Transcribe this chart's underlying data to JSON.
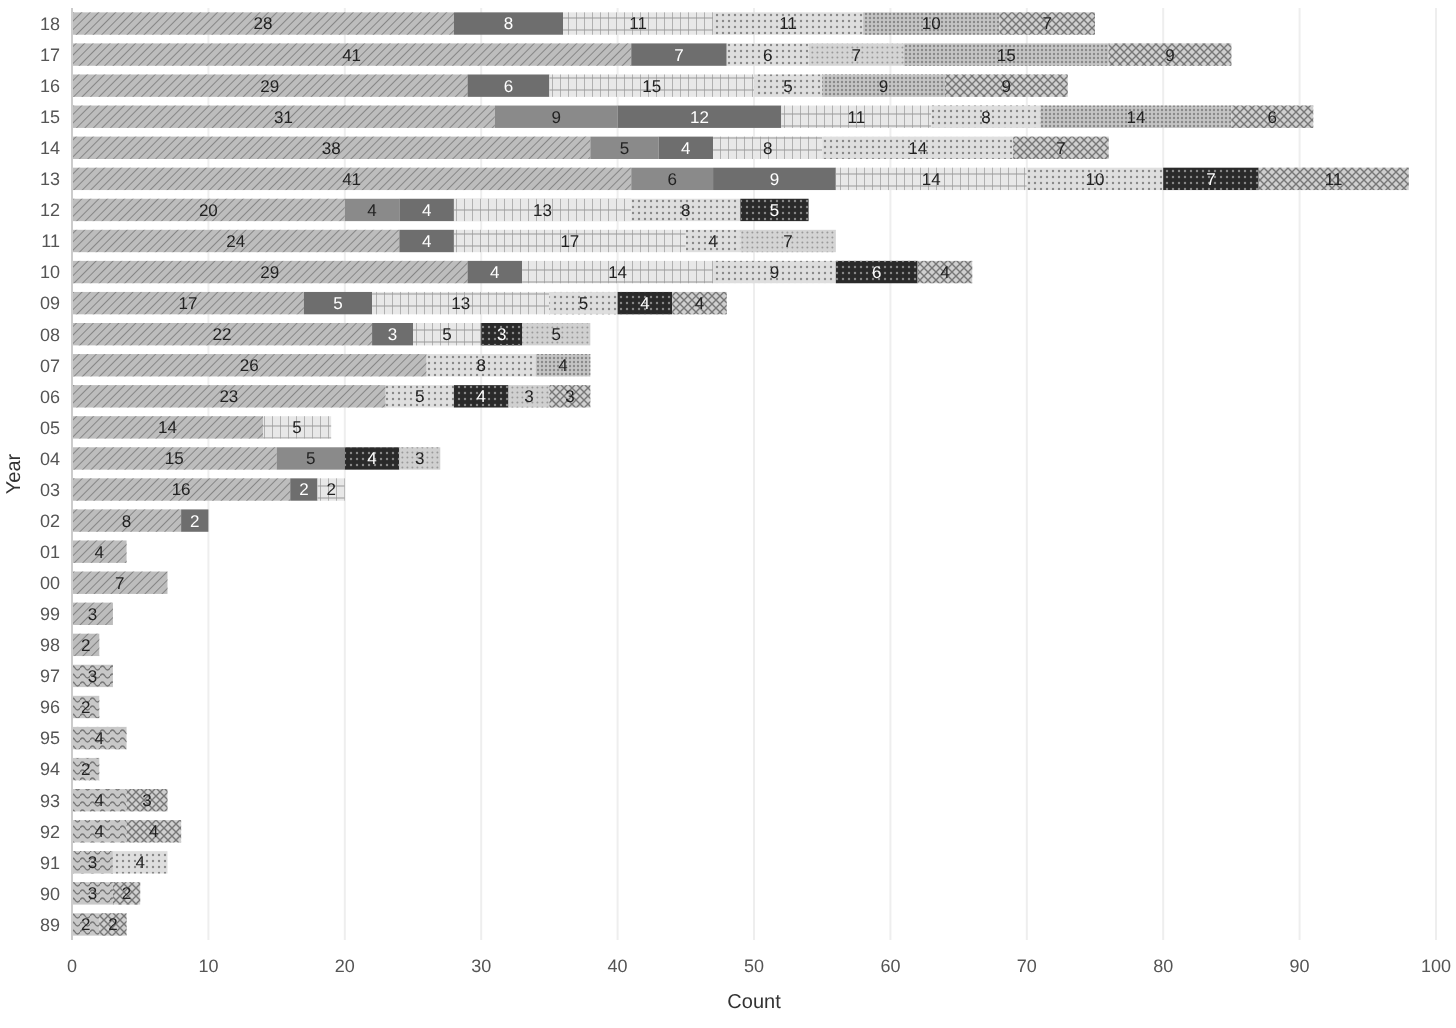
{
  "chart_data": {
    "type": "bar",
    "orientation": "horizontal",
    "stacked": true,
    "data_labels": true,
    "grid": "x",
    "xlabel": "Count",
    "ylabel": "Year",
    "categories": [
      "18",
      "17",
      "16",
      "15",
      "14",
      "13",
      "12",
      "11",
      "10",
      "09",
      "08",
      "07",
      "06",
      "05",
      "04",
      "03",
      "02",
      "01",
      "00",
      "99",
      "98",
      "97",
      "96",
      "95",
      "94",
      "93",
      "92",
      "91",
      "90",
      "89"
    ],
    "xlim": [
      0,
      100
    ],
    "xticks": [
      0,
      10,
      20,
      30,
      40,
      50,
      60,
      70,
      80,
      90,
      100
    ],
    "series": [
      {
        "color": "#c8c8c8",
        "values": [
          null,
          null,
          null,
          null,
          null,
          null,
          null,
          null,
          null,
          null,
          null,
          null,
          null,
          null,
          null,
          null,
          null,
          null,
          null,
          null,
          null,
          3,
          2,
          4,
          2,
          4,
          4,
          3,
          3,
          2
        ]
      },
      {
        "color": "#bdbdbd",
        "values": [
          28,
          41,
          29,
          31,
          38,
          41,
          20,
          24,
          29,
          17,
          22,
          26,
          23,
          14,
          15,
          16,
          8,
          4,
          7,
          3,
          2,
          null,
          null,
          null,
          null,
          null,
          null,
          null,
          null,
          null
        ]
      },
      {
        "color": "#8a8a8a",
        "values": [
          null,
          null,
          null,
          9,
          5,
          6,
          4,
          null,
          null,
          null,
          null,
          null,
          null,
          null,
          5,
          null,
          null,
          null,
          null,
          null,
          null,
          null,
          null,
          null,
          null,
          null,
          null,
          null,
          null,
          null
        ]
      },
      {
        "color": "#6e6e6e",
        "values": [
          8,
          7,
          6,
          12,
          4,
          9,
          4,
          4,
          4,
          5,
          3,
          null,
          null,
          null,
          null,
          2,
          2,
          null,
          null,
          null,
          null,
          null,
          null,
          null,
          null,
          null,
          null,
          null,
          null,
          null
        ]
      },
      {
        "color": "#e8e8e8",
        "values": [
          11,
          null,
          15,
          11,
          8,
          14,
          13,
          17,
          14,
          13,
          5,
          null,
          null,
          5,
          null,
          2,
          null,
          null,
          null,
          null,
          null,
          null,
          null,
          null,
          null,
          null,
          null,
          null,
          null,
          null
        ]
      },
      {
        "color": "#dedede",
        "values": [
          11,
          6,
          5,
          8,
          14,
          10,
          8,
          4,
          9,
          5,
          null,
          8,
          5,
          null,
          null,
          null,
          null,
          null,
          null,
          null,
          null,
          null,
          null,
          null,
          null,
          null,
          null,
          4,
          null,
          null
        ]
      },
      {
        "color": "#d4d4d4",
        "values": [
          null,
          7,
          null,
          null,
          null,
          null,
          null,
          7,
          null,
          null,
          null,
          null,
          null,
          null,
          null,
          null,
          null,
          null,
          null,
          null,
          null,
          null,
          null,
          null,
          null,
          null,
          null,
          null,
          null,
          null
        ]
      },
      {
        "color": "#c4c4c4",
        "values": [
          10,
          15,
          9,
          14,
          null,
          null,
          null,
          null,
          null,
          null,
          null,
          4,
          null,
          null,
          null,
          null,
          null,
          null,
          null,
          null,
          null,
          null,
          null,
          null,
          null,
          null,
          null,
          null,
          null,
          null
        ]
      },
      {
        "color": "#2a2a2a",
        "values": [
          null,
          null,
          null,
          null,
          null,
          7,
          5,
          null,
          6,
          4,
          3,
          null,
          4,
          null,
          4,
          null,
          null,
          null,
          null,
          null,
          null,
          null,
          null,
          null,
          null,
          null,
          null,
          null,
          null,
          null
        ]
      },
      {
        "color": "#d0d0d0",
        "values": [
          null,
          null,
          null,
          null,
          null,
          null,
          null,
          null,
          null,
          null,
          5,
          null,
          3,
          null,
          3,
          null,
          null,
          null,
          null,
          null,
          null,
          null,
          null,
          null,
          null,
          null,
          null,
          null,
          null,
          null
        ]
      },
      {
        "color": "#cfcfcf",
        "values": [
          7,
          9,
          9,
          6,
          7,
          11,
          null,
          null,
          4,
          4,
          null,
          null,
          3,
          null,
          null,
          null,
          null,
          null,
          null,
          null,
          null,
          null,
          null,
          null,
          null,
          3,
          4,
          null,
          2,
          2
        ]
      }
    ]
  }
}
